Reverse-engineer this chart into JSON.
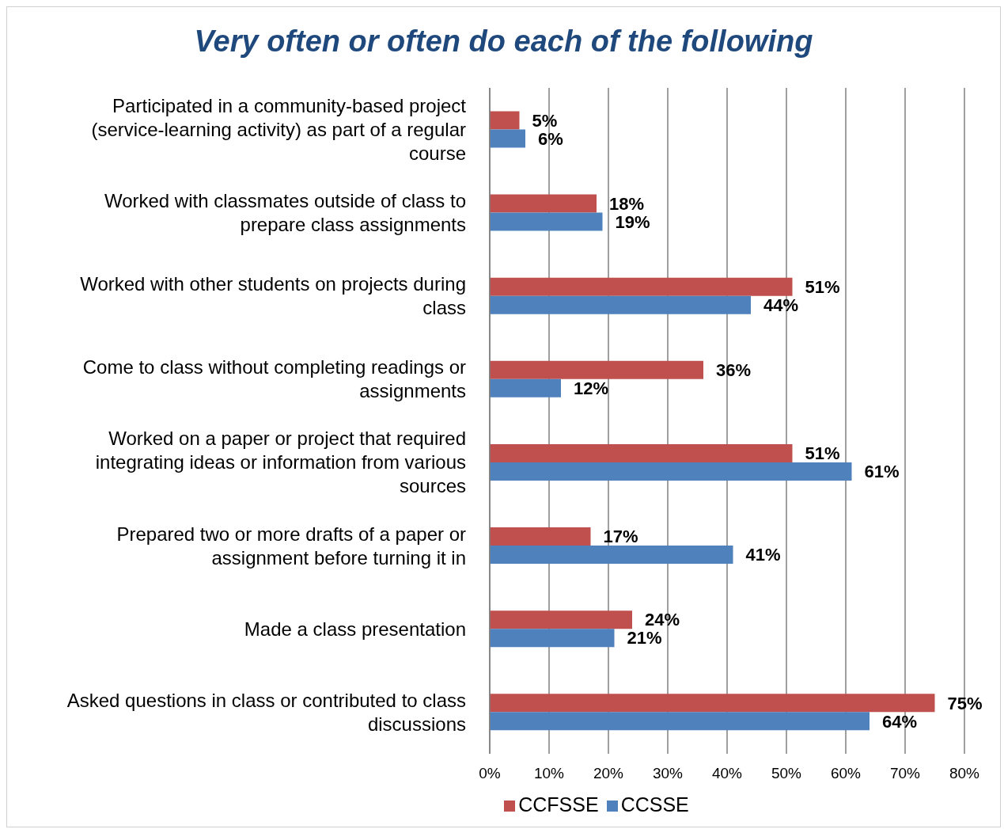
{
  "chart_data": {
    "type": "bar",
    "orientation": "horizontal",
    "title": "Very often or often do each of the following",
    "categories": [
      "Participated in a community-based project (service-learning activity) as part of a regular course",
      "Worked with classmates outside of class to prepare class assignments",
      "Worked with other students on projects during class",
      "Come to class without completing readings or assignments",
      "Worked on a paper or project that required integrating ideas or information from various sources",
      "Prepared two or more drafts of a paper or assignment before turning it in",
      "Made a class presentation",
      "Asked questions in class or contributed to class discussions"
    ],
    "series": [
      {
        "name": "CCFSSE",
        "color": "#c0504d",
        "values": [
          5,
          18,
          51,
          36,
          51,
          17,
          24,
          75
        ],
        "value_labels": [
          "5%",
          "18%",
          "51%",
          "36%",
          "51%",
          "17%",
          "24%",
          "75%"
        ]
      },
      {
        "name": "CCSSE",
        "color": "#4f81bd",
        "values": [
          6,
          19,
          44,
          12,
          61,
          41,
          21,
          64
        ],
        "value_labels": [
          "6%",
          "19%",
          "44%",
          "12%",
          "61%",
          "41%",
          "21%",
          "64%"
        ]
      }
    ],
    "xlim": [
      0,
      80
    ],
    "xticks": [
      {
        "value": 0,
        "label": "0%"
      },
      {
        "value": 10,
        "label": "10%"
      },
      {
        "value": 20,
        "label": "20%"
      },
      {
        "value": 30,
        "label": "30%"
      },
      {
        "value": 40,
        "label": "40%"
      },
      {
        "value": 50,
        "label": "50%"
      },
      {
        "value": 60,
        "label": "60%"
      },
      {
        "value": 70,
        "label": "70%"
      },
      {
        "value": 80,
        "label": "80%"
      }
    ],
    "grid": "x",
    "legend": "bottom"
  }
}
